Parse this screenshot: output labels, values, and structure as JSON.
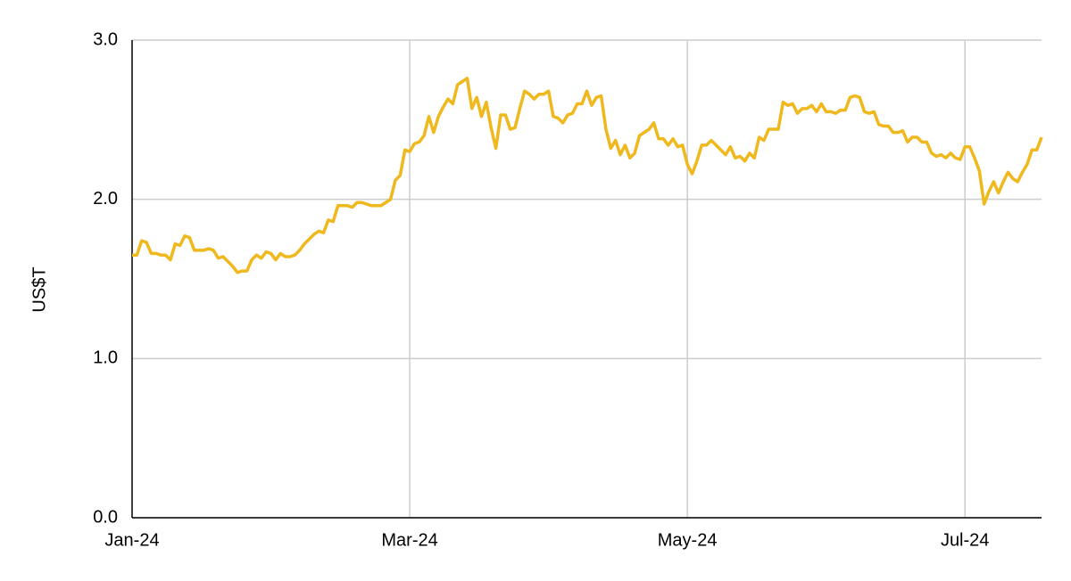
{
  "chart_data": {
    "type": "line",
    "y_label": "US$T",
    "categories": [
      "Jan-24",
      null,
      null,
      null,
      null,
      null,
      null,
      null,
      null,
      null,
      null,
      null,
      null,
      null,
      null,
      null,
      null,
      null,
      null,
      null,
      null,
      null,
      null,
      null,
      null,
      null,
      null,
      null,
      null,
      null,
      null,
      null,
      null,
      null,
      null,
      null,
      null,
      null,
      null,
      null,
      null,
      null,
      null,
      null,
      null,
      null,
      null,
      null,
      null,
      null,
      null,
      null,
      null,
      null,
      null,
      null,
      null,
      null,
      "Mar-24",
      null,
      null,
      null,
      null,
      null,
      null,
      null,
      null,
      null,
      null,
      null,
      null,
      null,
      null,
      null,
      null,
      null,
      null,
      null,
      null,
      null,
      null,
      null,
      null,
      null,
      null,
      null,
      null,
      null,
      null,
      null,
      null,
      null,
      null,
      null,
      null,
      null,
      null,
      null,
      null,
      null,
      null,
      null,
      null,
      null,
      null,
      null,
      null,
      null,
      null,
      null,
      null,
      null,
      null,
      null,
      null,
      null,
      "May-24",
      null,
      null,
      null,
      null,
      null,
      null,
      null,
      null,
      null,
      null,
      null,
      null,
      null,
      null,
      null,
      null,
      null,
      null,
      null,
      null,
      null,
      null,
      null,
      null,
      null,
      null,
      null,
      null,
      null,
      null,
      null,
      null,
      null,
      null,
      null,
      null,
      null,
      null,
      null,
      null,
      null,
      null,
      null,
      null,
      null,
      null,
      null,
      null,
      null,
      null,
      null,
      null,
      null,
      null,
      null,
      null,
      null,
      "Jul-24",
      null,
      null,
      null,
      null,
      null,
      null,
      null,
      null,
      null,
      null,
      null,
      null,
      null,
      null,
      null,
      null
    ],
    "values": [
      1.65,
      1.65,
      1.74,
      1.73,
      1.66,
      1.66,
      1.65,
      1.65,
      1.62,
      1.72,
      1.71,
      1.77,
      1.76,
      1.68,
      1.68,
      1.68,
      1.69,
      1.68,
      1.63,
      1.64,
      1.61,
      1.58,
      1.54,
      1.55,
      1.55,
      1.62,
      1.65,
      1.63,
      1.67,
      1.66,
      1.62,
      1.66,
      1.64,
      1.64,
      1.65,
      1.68,
      1.72,
      1.75,
      1.78,
      1.8,
      1.79,
      1.87,
      1.86,
      1.96,
      1.96,
      1.96,
      1.95,
      1.98,
      1.98,
      1.97,
      1.96,
      1.96,
      1.96,
      1.98,
      2.0,
      2.12,
      2.15,
      2.31,
      2.3,
      2.35,
      2.36,
      2.4,
      2.52,
      2.42,
      2.52,
      2.58,
      2.63,
      2.6,
      2.72,
      2.74,
      2.76,
      2.57,
      2.64,
      2.52,
      2.61,
      2.45,
      2.32,
      2.53,
      2.53,
      2.44,
      2.45,
      2.57,
      2.68,
      2.66,
      2.63,
      2.66,
      2.66,
      2.68,
      2.52,
      2.51,
      2.48,
      2.53,
      2.54,
      2.6,
      2.6,
      2.68,
      2.59,
      2.64,
      2.65,
      2.44,
      2.32,
      2.37,
      2.28,
      2.34,
      2.26,
      2.29,
      2.4,
      2.42,
      2.44,
      2.48,
      2.38,
      2.38,
      2.34,
      2.38,
      2.33,
      2.34,
      2.22,
      2.16,
      2.24,
      2.34,
      2.34,
      2.37,
      2.34,
      2.31,
      2.28,
      2.33,
      2.26,
      2.27,
      2.24,
      2.29,
      2.26,
      2.39,
      2.37,
      2.44,
      2.44,
      2.44,
      2.61,
      2.59,
      2.6,
      2.54,
      2.57,
      2.57,
      2.59,
      2.55,
      2.6,
      2.55,
      2.55,
      2.54,
      2.56,
      2.56,
      2.64,
      2.65,
      2.64,
      2.55,
      2.54,
      2.55,
      2.47,
      2.46,
      2.46,
      2.42,
      2.42,
      2.43,
      2.36,
      2.39,
      2.39,
      2.36,
      2.36,
      2.29,
      2.27,
      2.28,
      2.26,
      2.29,
      2.26,
      2.25,
      2.33,
      2.33,
      2.26,
      2.18,
      1.97,
      2.05,
      2.11,
      2.04,
      2.11,
      2.17,
      2.13,
      2.11,
      2.17,
      2.22,
      2.31,
      2.31,
      2.39
    ],
    "color": "#efb81d",
    "ylim": [
      0,
      3
    ],
    "yticks": [
      {
        "value": 0,
        "label": "0.0"
      },
      {
        "value": 1,
        "label": "1.0"
      },
      {
        "value": 2,
        "label": "2.0"
      },
      {
        "value": 3,
        "label": "3.0"
      }
    ],
    "grid": true
  }
}
